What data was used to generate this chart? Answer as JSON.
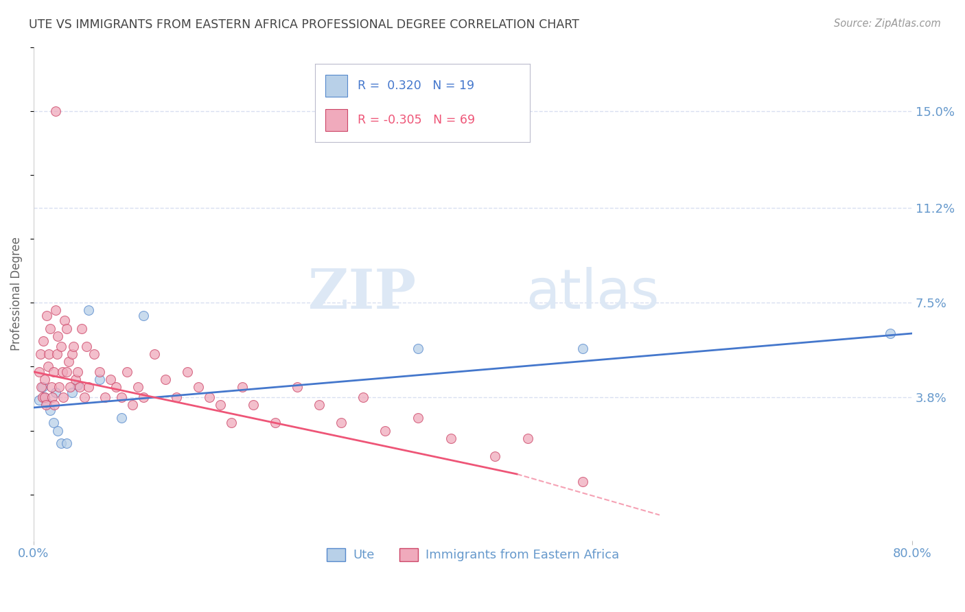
{
  "title": "UTE VS IMMIGRANTS FROM EASTERN AFRICA PROFESSIONAL DEGREE CORRELATION CHART",
  "source": "Source: ZipAtlas.com",
  "ylabel": "Professional Degree",
  "watermark_zip": "ZIP",
  "watermark_atlas": "atlas",
  "xlim": [
    0.0,
    0.8
  ],
  "ylim": [
    -0.018,
    0.175
  ],
  "yticks": [
    0.038,
    0.075,
    0.112,
    0.15
  ],
  "ytick_labels": [
    "3.8%",
    "7.5%",
    "11.2%",
    "15.0%"
  ],
  "xticks": [
    0.0,
    0.8
  ],
  "xtick_labels": [
    "0.0%",
    "80.0%"
  ],
  "grid_color": "#d8dff0",
  "background_color": "#ffffff",
  "title_color": "#444444",
  "axis_tick_color": "#6699cc",
  "ute_fill_color": "#b8d0e8",
  "ute_edge_color": "#5588cc",
  "immigrants_fill_color": "#f0aabc",
  "immigrants_edge_color": "#cc4466",
  "ute_line_color": "#4477cc",
  "immigrants_line_color": "#ee5577",
  "ute_scatter_x": [
    0.005,
    0.008,
    0.01,
    0.012,
    0.015,
    0.018,
    0.02,
    0.022,
    0.025,
    0.03,
    0.035,
    0.04,
    0.05,
    0.06,
    0.08,
    0.1,
    0.35,
    0.5,
    0.78
  ],
  "ute_scatter_y": [
    0.037,
    0.042,
    0.038,
    0.036,
    0.033,
    0.028,
    0.04,
    0.025,
    0.02,
    0.02,
    0.04,
    0.043,
    0.072,
    0.045,
    0.03,
    0.07,
    0.057,
    0.057,
    0.063
  ],
  "imm_scatter_x": [
    0.005,
    0.006,
    0.007,
    0.008,
    0.009,
    0.01,
    0.01,
    0.011,
    0.012,
    0.013,
    0.014,
    0.015,
    0.016,
    0.017,
    0.018,
    0.019,
    0.02,
    0.021,
    0.022,
    0.023,
    0.025,
    0.026,
    0.027,
    0.028,
    0.03,
    0.03,
    0.032,
    0.033,
    0.035,
    0.036,
    0.038,
    0.04,
    0.042,
    0.044,
    0.046,
    0.048,
    0.05,
    0.055,
    0.06,
    0.065,
    0.07,
    0.075,
    0.08,
    0.085,
    0.09,
    0.095,
    0.1,
    0.11,
    0.12,
    0.13,
    0.14,
    0.15,
    0.16,
    0.17,
    0.18,
    0.19,
    0.2,
    0.22,
    0.24,
    0.26,
    0.28,
    0.3,
    0.32,
    0.35,
    0.38,
    0.42,
    0.45,
    0.5,
    0.02
  ],
  "imm_scatter_y": [
    0.048,
    0.055,
    0.042,
    0.038,
    0.06,
    0.045,
    0.038,
    0.035,
    0.07,
    0.05,
    0.055,
    0.065,
    0.042,
    0.038,
    0.048,
    0.035,
    0.072,
    0.055,
    0.062,
    0.042,
    0.058,
    0.048,
    0.038,
    0.068,
    0.065,
    0.048,
    0.052,
    0.042,
    0.055,
    0.058,
    0.045,
    0.048,
    0.042,
    0.065,
    0.038,
    0.058,
    0.042,
    0.055,
    0.048,
    0.038,
    0.045,
    0.042,
    0.038,
    0.048,
    0.035,
    0.042,
    0.038,
    0.055,
    0.045,
    0.038,
    0.048,
    0.042,
    0.038,
    0.035,
    0.028,
    0.042,
    0.035,
    0.028,
    0.042,
    0.035,
    0.028,
    0.038,
    0.025,
    0.03,
    0.022,
    0.015,
    0.022,
    0.005,
    0.15
  ],
  "ute_line_x0": 0.0,
  "ute_line_x1": 0.8,
  "ute_line_y0": 0.034,
  "ute_line_y1": 0.063,
  "imm_line_solid_x0": 0.0,
  "imm_line_solid_x1": 0.44,
  "imm_line_solid_y0": 0.048,
  "imm_line_solid_y1": 0.008,
  "imm_line_dash_x0": 0.44,
  "imm_line_dash_x1": 0.57,
  "imm_line_dash_y0": 0.008,
  "imm_line_dash_y1": -0.008,
  "legend_box_text1": "R =  0.320   N = 19",
  "legend_box_text2": "R = -0.305   N = 69",
  "bottom_legend_labels": [
    "Ute",
    "Immigrants from Eastern Africa"
  ]
}
